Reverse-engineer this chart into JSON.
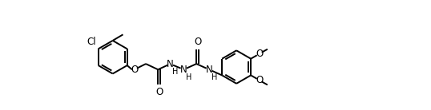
{
  "bg_color": "#ffffff",
  "line_color": "#000000",
  "lw": 1.4,
  "fs": 8.5,
  "fig_width": 5.38,
  "fig_height": 1.38,
  "dpi": 100,
  "xlim": [
    -0.2,
    10.2
  ],
  "ylim": [
    -0.1,
    2.56
  ]
}
